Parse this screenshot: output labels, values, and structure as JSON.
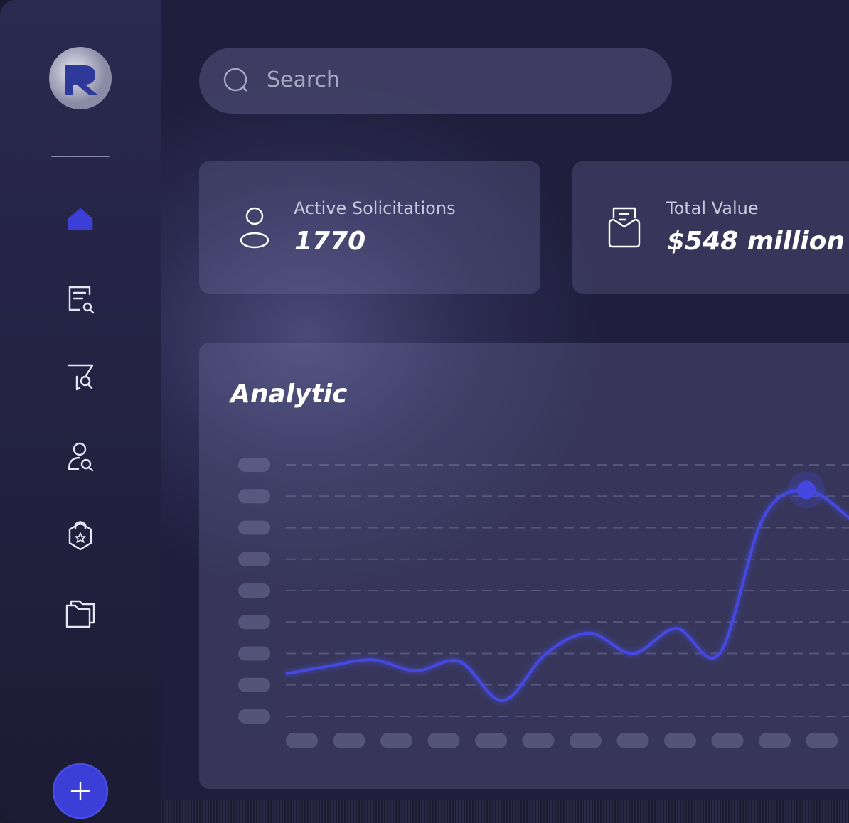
{
  "search": {
    "placeholder": "Search"
  },
  "stats": [
    {
      "label": "Active Solicitations",
      "value": "1770"
    },
    {
      "label": "Total Value",
      "value": "$548 million"
    }
  ],
  "analytic": {
    "title": "Analytic",
    "type": "line",
    "values": [
      1.35,
      1.6,
      1.8,
      1.45,
      1.75,
      0.5,
      2.0,
      2.65,
      2.0,
      2.8,
      2.0,
      6.3,
      7.2,
      6.3
    ]
  }
}
